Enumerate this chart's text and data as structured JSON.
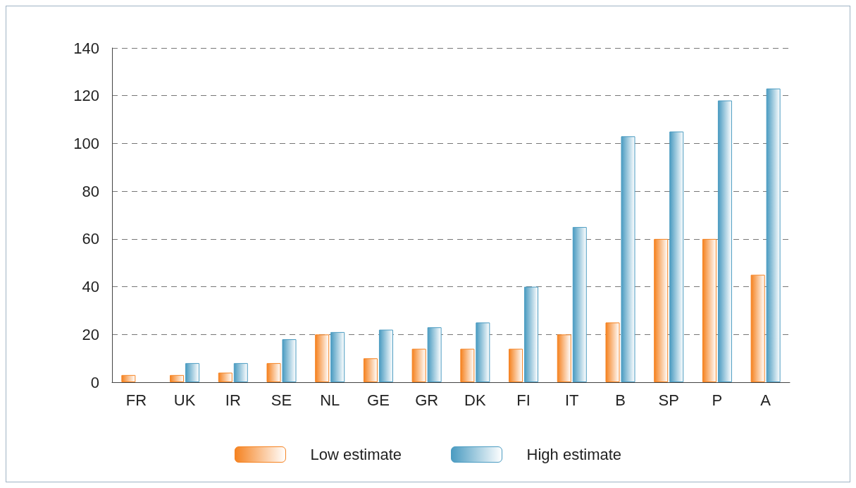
{
  "chart_data": {
    "type": "bar",
    "categories": [
      "FR",
      "UK",
      "IR",
      "SE",
      "NL",
      "GE",
      "GR",
      "DK",
      "FI",
      "IT",
      "B",
      "SP",
      "P",
      "A"
    ],
    "series": [
      {
        "name": "Low estimate",
        "color": "#f58220",
        "values": [
          3,
          3,
          4,
          8,
          20,
          10,
          14,
          14,
          14,
          20,
          25,
          60,
          60,
          45
        ]
      },
      {
        "name": "High estimate",
        "color": "#4a9bc1",
        "values": [
          null,
          8,
          8,
          18,
          21,
          22,
          23,
          25,
          40,
          65,
          103,
          105,
          118,
          123
        ]
      }
    ],
    "ylim": [
      0,
      140
    ],
    "yticks": [
      0,
      20,
      40,
      60,
      80,
      100,
      120,
      140
    ],
    "grid": "y",
    "legend": "bottom"
  }
}
